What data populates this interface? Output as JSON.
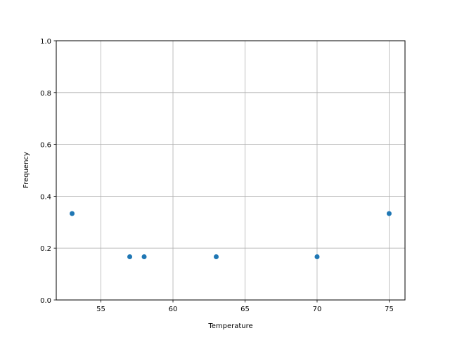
{
  "chart_data": {
    "type": "scatter",
    "title": "",
    "xlabel": "Temperature",
    "ylabel": "Frequency",
    "xlim": [
      51.9,
      76.1
    ],
    "ylim": [
      0,
      1.0
    ],
    "grid": true,
    "x_ticks": [
      55,
      60,
      65,
      70,
      75
    ],
    "x_tick_labels": [
      "55",
      "60",
      "65",
      "70",
      "75"
    ],
    "y_ticks": [
      0,
      0.2,
      0.4,
      0.6,
      0.8,
      1.0
    ],
    "y_tick_labels": [
      "0.0",
      "0.2",
      "0.4",
      "0.6",
      "0.8",
      "1.0"
    ],
    "points": [
      {
        "x": 53,
        "y": 0.3333
      },
      {
        "x": 57,
        "y": 0.1667
      },
      {
        "x": 58,
        "y": 0.1667
      },
      {
        "x": 63,
        "y": 0.1667
      },
      {
        "x": 70,
        "y": 0.1667
      },
      {
        "x": 75,
        "y": 0.3333
      }
    ],
    "marker_color": "#1f77b4",
    "grid_color": "#b0b0b0"
  }
}
